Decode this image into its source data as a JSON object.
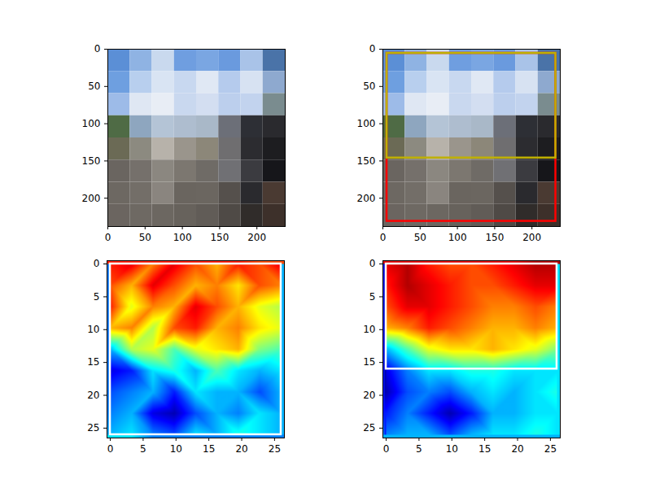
{
  "chart_data": [
    {
      "type": "image",
      "xlim": [
        0,
        238
      ],
      "ylim": [
        238,
        0
      ],
      "xticks": [
        0,
        50,
        100,
        150,
        200
      ],
      "yticks": [
        0,
        50,
        100,
        150,
        200
      ],
      "pixels": [
        [
          "#5b8fd6",
          "#8fb3e3",
          "#c9d9ee",
          "#6f9ee0",
          "#7aa6e2",
          "#6a9ade",
          "#a9c3e8",
          "#4a73a8"
        ],
        [
          "#6e9fe0",
          "#b8cfee",
          "#d9e4f3",
          "#c8d8f0",
          "#e0e8f4",
          "#b5cbed",
          "#d7e2f2",
          "#8ea9cf"
        ],
        [
          "#9dbbe8",
          "#dfe7f3",
          "#e8edf5",
          "#c9d8ef",
          "#d3def1",
          "#bccfed",
          "#c2d3ee",
          "#7a8c8f"
        ],
        [
          "#4f6b45",
          "#8ea6bf",
          "#b4c4d6",
          "#aebdcf",
          "#a9b8c8",
          "#6c6f78",
          "#2d2f35",
          "#2a2a2e"
        ],
        [
          "#6b6a55",
          "#8c8a80",
          "#b7b2aa",
          "#9a958c",
          "#8c8779",
          "#6f6e70",
          "#2c2c30",
          "#1d1d20"
        ],
        [
          "#6a6560",
          "#75706b",
          "#8b8780",
          "#7c7770",
          "#6f6b66",
          "#707074",
          "#3b3b40",
          "#16161a"
        ],
        [
          "#6d6862",
          "#736e68",
          "#8a857f",
          "#6a655f",
          "#6b6660",
          "#55504c",
          "#2a2a2e",
          "#4a3a32"
        ],
        [
          "#6b6560",
          "#6e6963",
          "#6c6761",
          "#67625c",
          "#615c57",
          "#4f4a46",
          "#302c2a",
          "#3d302a"
        ]
      ],
      "boxes": []
    },
    {
      "type": "image",
      "xlim": [
        0,
        238
      ],
      "ylim": [
        238,
        0
      ],
      "xticks": [
        0,
        50,
        100,
        150,
        200
      ],
      "yticks": [
        0,
        50,
        100,
        150,
        200
      ],
      "pixels": [
        [
          "#5b8fd6",
          "#8fb3e3",
          "#c9d9ee",
          "#6f9ee0",
          "#7aa6e2",
          "#6a9ade",
          "#a9c3e8",
          "#4a73a8"
        ],
        [
          "#6e9fe0",
          "#b8cfee",
          "#d9e4f3",
          "#c8d8f0",
          "#e0e8f4",
          "#b5cbed",
          "#d7e2f2",
          "#8ea9cf"
        ],
        [
          "#9dbbe8",
          "#dfe7f3",
          "#e8edf5",
          "#c9d8ef",
          "#d3def1",
          "#bccfed",
          "#c2d3ee",
          "#7a8c8f"
        ],
        [
          "#4f6b45",
          "#8ea6bf",
          "#b4c4d6",
          "#aebdcf",
          "#a9b8c8",
          "#6c6f78",
          "#2d2f35",
          "#2a2a2e"
        ],
        [
          "#6b6a55",
          "#8c8a80",
          "#b7b2aa",
          "#9a958c",
          "#8c8779",
          "#6f6e70",
          "#2c2c30",
          "#1d1d20"
        ],
        [
          "#6a6560",
          "#75706b",
          "#8b8780",
          "#7c7770",
          "#6f6b66",
          "#707074",
          "#3b3b40",
          "#16161a"
        ],
        [
          "#6d6862",
          "#736e68",
          "#8a857f",
          "#6a655f",
          "#6b6660",
          "#55504c",
          "#2a2a2e",
          "#4a3a32"
        ],
        [
          "#6b6560",
          "#6e6963",
          "#6c6761",
          "#67625c",
          "#615c57",
          "#4f4a46",
          "#302c2a",
          "#3d302a"
        ]
      ],
      "boxes": [
        {
          "x1": 5.5,
          "x2": 232,
          "y1": 5.5,
          "y2": 231,
          "color": "#ff0000"
        },
        {
          "x1": 5.5,
          "x2": 232,
          "y1": 5.5,
          "y2": 146,
          "color": "#bfb000"
        }
      ]
    },
    {
      "type": "heatmap",
      "xlim": [
        -0.5,
        26.5
      ],
      "ylim": [
        26.5,
        -0.5
      ],
      "xticks": [
        0,
        5,
        10,
        15,
        20,
        25
      ],
      "yticks": [
        0,
        5,
        10,
        15,
        20,
        25
      ],
      "clim": [
        0,
        1
      ],
      "x": [
        0,
        3.25,
        6.5,
        9.75,
        13,
        16.25,
        19.5,
        22.75,
        26
      ],
      "y": [
        0,
        3.25,
        6.5,
        9.75,
        13,
        16.25,
        19.5,
        22.75,
        26
      ],
      "cells": [
        [
          0.85,
          0.9,
          0.75,
          0.9,
          0.8,
          0.7,
          0.85,
          0.8,
          0.9
        ],
        [
          0.8,
          0.7,
          0.9,
          0.8,
          0.7,
          0.75,
          0.65,
          0.8,
          0.75
        ],
        [
          0.85,
          0.6,
          0.75,
          0.7,
          0.9,
          0.8,
          0.7,
          0.6,
          0.55
        ],
        [
          0.7,
          0.75,
          0.55,
          0.8,
          0.85,
          0.7,
          0.75,
          0.65,
          0.6
        ],
        [
          0.3,
          0.55,
          0.6,
          0.45,
          0.6,
          0.65,
          0.7,
          0.5,
          0.45
        ],
        [
          0.1,
          0.15,
          0.35,
          0.4,
          0.3,
          0.45,
          0.35,
          0.3,
          0.35
        ],
        [
          0.2,
          0.25,
          0.3,
          0.15,
          0.35,
          0.3,
          0.3,
          0.2,
          0.3
        ],
        [
          0.25,
          0.3,
          0.1,
          0.05,
          0.2,
          0.3,
          0.25,
          0.35,
          0.3
        ],
        [
          0.3,
          0.35,
          0.25,
          0.2,
          0.35,
          0.3,
          0.4,
          0.35,
          0.3
        ]
      ],
      "boxes": [
        {
          "x1": 0,
          "x2": 26,
          "y1": 0,
          "y2": 26,
          "color": "#ffffff"
        }
      ]
    },
    {
      "type": "heatmap",
      "xlim": [
        -0.5,
        26.5
      ],
      "ylim": [
        26.5,
        -0.5
      ],
      "xticks": [
        0,
        5,
        10,
        15,
        20,
        25
      ],
      "yticks": [
        0,
        5,
        10,
        15,
        20,
        25
      ],
      "clim": [
        0,
        1
      ],
      "x": [
        0,
        3.25,
        6.5,
        9.75,
        13,
        16.25,
        19.5,
        22.75,
        26
      ],
      "y": [
        0,
        3.25,
        6.5,
        9.75,
        13,
        16.25,
        19.5,
        22.75,
        26
      ],
      "cells": [
        [
          0.9,
          0.95,
          0.85,
          0.8,
          0.8,
          0.85,
          0.9,
          0.95,
          0.95
        ],
        [
          0.85,
          0.95,
          0.9,
          0.85,
          0.8,
          0.8,
          0.85,
          0.9,
          0.9
        ],
        [
          0.8,
          0.9,
          0.9,
          0.85,
          0.8,
          0.75,
          0.75,
          0.8,
          0.75
        ],
        [
          0.7,
          0.75,
          0.85,
          0.8,
          0.75,
          0.7,
          0.7,
          0.75,
          0.7
        ],
        [
          0.3,
          0.45,
          0.6,
          0.65,
          0.65,
          0.7,
          0.65,
          0.6,
          0.5
        ],
        [
          0.1,
          0.25,
          0.35,
          0.35,
          0.4,
          0.4,
          0.35,
          0.35,
          0.35
        ],
        [
          0.05,
          0.2,
          0.25,
          0.2,
          0.3,
          0.35,
          0.3,
          0.35,
          0.4
        ],
        [
          0.15,
          0.25,
          0.15,
          0.05,
          0.15,
          0.3,
          0.3,
          0.35,
          0.35
        ],
        [
          0.25,
          0.3,
          0.3,
          0.2,
          0.3,
          0.35,
          0.35,
          0.4,
          0.35
        ]
      ],
      "boxes": [
        {
          "x1": 0,
          "x2": 26,
          "y1": 0,
          "y2": 16,
          "color": "#ffffff"
        }
      ]
    }
  ]
}
